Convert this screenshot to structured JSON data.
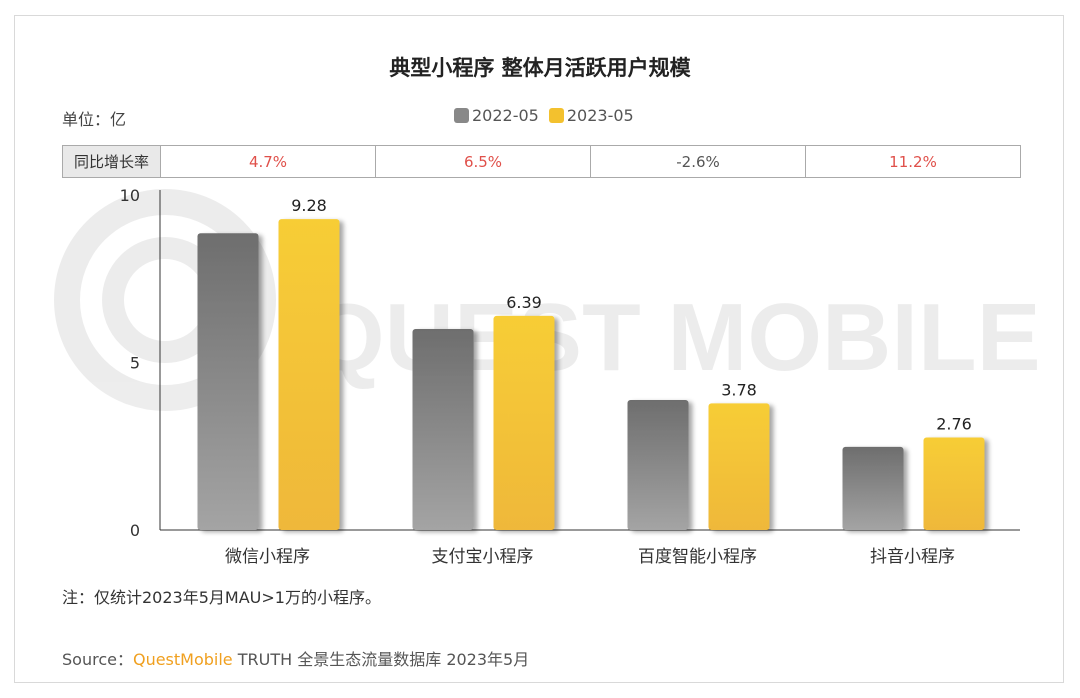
{
  "title": "典型小程序 整体月活跃用户规模",
  "unit_label": "单位：亿",
  "colors": {
    "series_2022": "#888888",
    "series_2023": "#f3c12e",
    "yoy_positive": "#e0504a",
    "yoy_negative": "#555555",
    "source_brand": "#f0a020"
  },
  "legend": [
    {
      "label": "2022-05",
      "color": "#888888"
    },
    {
      "label": "2023-05",
      "color": "#f3c12e"
    }
  ],
  "yoy": {
    "header": "同比增长率",
    "values": [
      "4.7%",
      "6.5%",
      "-2.6%",
      "11.2%"
    ]
  },
  "chart_data": {
    "type": "bar",
    "categories": [
      "微信小程序",
      "支付宝小程序",
      "百度智能小程序",
      "抖音小程序"
    ],
    "series": [
      {
        "name": "2022-05",
        "values": [
          8.86,
          6.0,
          3.88,
          2.48
        ]
      },
      {
        "name": "2023-05",
        "values": [
          9.28,
          6.39,
          3.78,
          2.76
        ],
        "labels": [
          "9.28",
          "6.39",
          "3.78",
          "2.76"
        ]
      }
    ],
    "y_ticks": [
      "10",
      "5",
      "0"
    ],
    "ylim": [
      0,
      10
    ],
    "grid": false
  },
  "watermark": "QUEST MOBILE",
  "note": "注：仅统计2023年5月MAU>1万的小程序。",
  "source": {
    "prefix": "Source：",
    "brand": "QuestMobile",
    "rest": "TRUTH 全景生态流量数据库 2023年5月"
  }
}
